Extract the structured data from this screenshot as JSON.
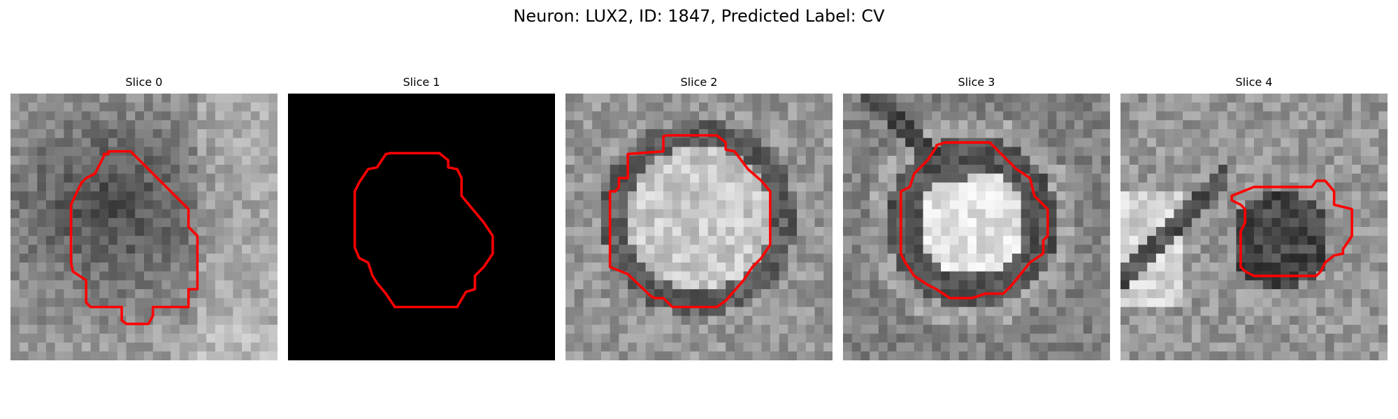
{
  "figure": {
    "title": "Neuron: LUX2, ID: 1847, Predicted Label: CV"
  },
  "colors": {
    "background": "#ffffff",
    "contour": "#ff0000",
    "blank_slice": "#000000"
  },
  "panels": [
    {
      "title": "Slice 0",
      "image": "grayscale-microscopy-patch"
    },
    {
      "title": "Slice 1",
      "image": "blank-black-patch"
    },
    {
      "title": "Slice 2",
      "image": "grayscale-microscopy-patch"
    },
    {
      "title": "Slice 3",
      "image": "grayscale-microscopy-patch"
    },
    {
      "title": "Slice 4",
      "image": "grayscale-microscopy-patch"
    }
  ]
}
